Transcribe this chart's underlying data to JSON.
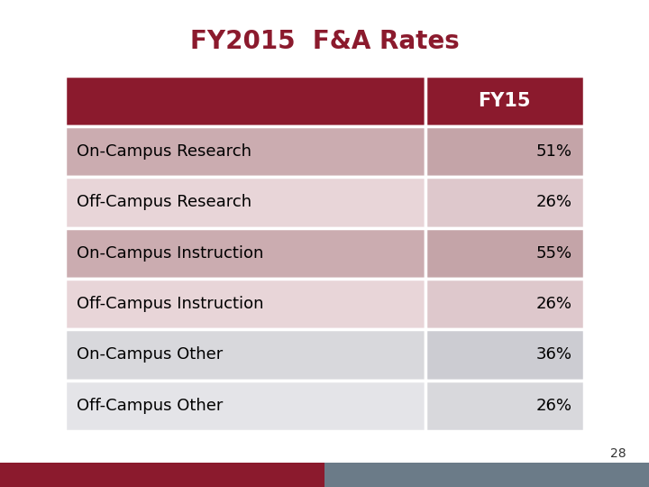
{
  "title": "FY2015  F&A Rates",
  "title_color": "#8B1A2D",
  "title_fontsize": 20,
  "header_label": "FY15",
  "header_bg": "#8B1A2D",
  "header_text_color": "#FFFFFF",
  "rows": [
    {
      "label": "On-Campus Research",
      "value": "51%",
      "row_bg": "#CBACB0",
      "val_bg": "#C4A4A8"
    },
    {
      "label": "Off-Campus Research",
      "value": "26%",
      "row_bg": "#E8D5D8",
      "val_bg": "#DEC8CC"
    },
    {
      "label": "On-Campus Instruction",
      "value": "55%",
      "row_bg": "#CBACB0",
      "val_bg": "#C4A4A8"
    },
    {
      "label": "Off-Campus Instruction",
      "value": "26%",
      "row_bg": "#E8D5D8",
      "val_bg": "#DEC8CC"
    },
    {
      "label": "On-Campus Other",
      "value": "36%",
      "row_bg": "#D8D8DC",
      "val_bg": "#CCCCD2"
    },
    {
      "label": "Off-Campus Other",
      "value": "26%",
      "row_bg": "#E4E4E8",
      "val_bg": "#D8D8DC"
    }
  ],
  "page_bg": "#FFFFFF",
  "slide_bg": "#FFFFFF",
  "footer_bar_left_color": "#8B1A2D",
  "footer_bar_right_color": "#6B7B88",
  "page_number": "28",
  "page_number_color": "#333333",
  "row_cell_fontsize": 13,
  "header_fontsize": 15,
  "cell_border_color": "#FFFFFF",
  "cell_border_lw": 2.5
}
